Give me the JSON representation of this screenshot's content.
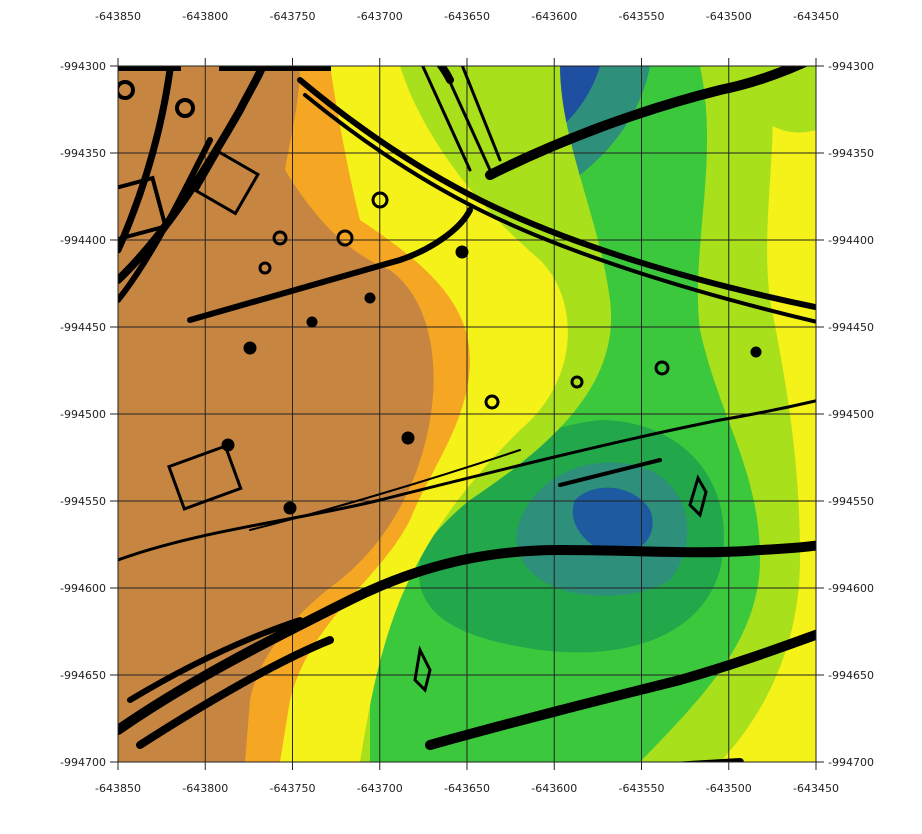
{
  "map": {
    "x_ticks": [
      "-643850",
      "-643800",
      "-643750",
      "-643700",
      "-643650",
      "-643600",
      "-643550",
      "-643500",
      "-643450"
    ],
    "y_ticks": [
      "-994300",
      "-994350",
      "-994400",
      "-994450",
      "-994500",
      "-994550",
      "-994600",
      "-994650",
      "-994700"
    ],
    "colors": {
      "brown": "#c68642",
      "orange": "#f5a623",
      "yellow": "#f5f21a",
      "lime": "#a8e01c",
      "green": "#3cc83c",
      "dark_green": "#22a84a",
      "teal": "#2e8f7a",
      "blue": "#1e4fa0",
      "ink": "#000000",
      "grid": "#222222"
    }
  }
}
